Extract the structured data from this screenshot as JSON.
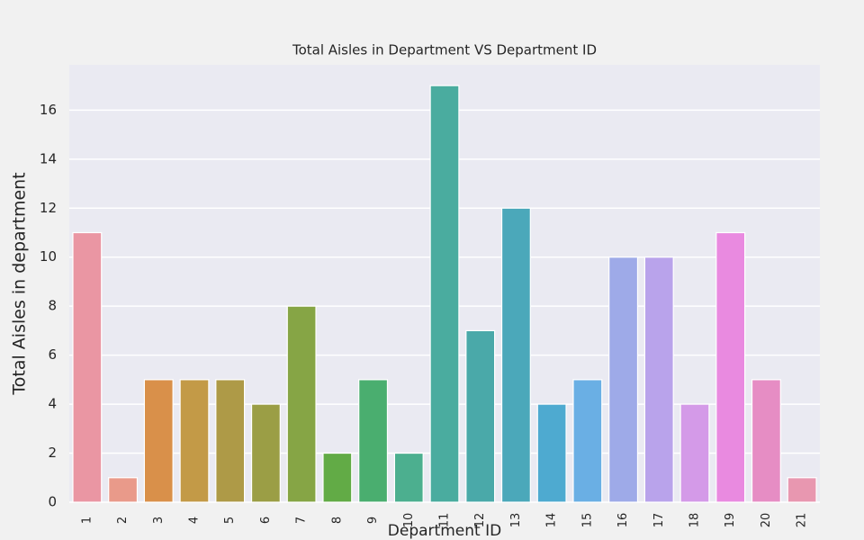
{
  "chart_data": {
    "type": "bar",
    "title": "Total Aisles in Department VS Department ID",
    "x_label": "Department ID",
    "y_label": "Total Aisles in department",
    "categories": [
      "1",
      "2",
      "3",
      "4",
      "5",
      "6",
      "7",
      "8",
      "9",
      "10",
      "11",
      "12",
      "13",
      "14",
      "15",
      "16",
      "17",
      "18",
      "19",
      "20",
      "21"
    ],
    "values": [
      11,
      1,
      5,
      5,
      5,
      4,
      8,
      2,
      5,
      2,
      17,
      7,
      12,
      4,
      5,
      10,
      10,
      4,
      11,
      5,
      1
    ],
    "colors": [
      "#ea96a3",
      "#e99a8a",
      "#d9904a",
      "#c39a47",
      "#ae9a47",
      "#9b9e45",
      "#86a545",
      "#62ab46",
      "#4aae6f",
      "#4caf8f",
      "#4aac9f",
      "#4aa9a9",
      "#4ba8ba",
      "#4eaad0",
      "#6aafe4",
      "#9eaae8",
      "#b9a3eb",
      "#d49ae8",
      "#e98ae0",
      "#e68dc4",
      "#e897b0"
    ],
    "ylim": [
      0,
      17.85
    ],
    "yticks": [
      0,
      2,
      4,
      6,
      8,
      10,
      12,
      14,
      16
    ],
    "grid": true
  }
}
